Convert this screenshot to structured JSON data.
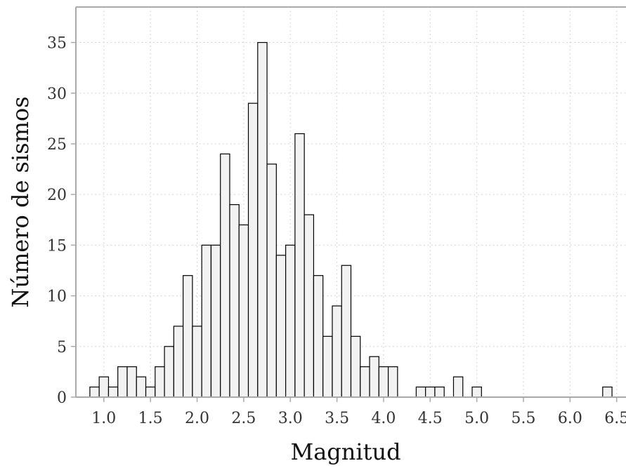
{
  "chart_data": {
    "type": "bar",
    "subtype": "histogram",
    "title": "",
    "xlabel": "Magnitud",
    "ylabel": "Número de sismos",
    "bin_width": 0.1,
    "xlim": [
      0.7,
      6.6
    ],
    "ylim": [
      0,
      38.5
    ],
    "xticks": [
      1.0,
      1.5,
      2.0,
      2.5,
      3.0,
      3.5,
      4.0,
      4.5,
      5.0,
      5.5,
      6.0,
      6.5
    ],
    "yticks": [
      0,
      5,
      10,
      15,
      20,
      25,
      30,
      35
    ],
    "grid": true,
    "bar_fill": "#f2f2f2",
    "bar_edge": "#000000",
    "bins": [
      {
        "x": 0.9,
        "count": 1
      },
      {
        "x": 1.0,
        "count": 2
      },
      {
        "x": 1.1,
        "count": 1
      },
      {
        "x": 1.2,
        "count": 3
      },
      {
        "x": 1.3,
        "count": 3
      },
      {
        "x": 1.4,
        "count": 2
      },
      {
        "x": 1.5,
        "count": 1
      },
      {
        "x": 1.6,
        "count": 3
      },
      {
        "x": 1.7,
        "count": 5
      },
      {
        "x": 1.8,
        "count": 7
      },
      {
        "x": 1.9,
        "count": 12
      },
      {
        "x": 2.0,
        "count": 7
      },
      {
        "x": 2.1,
        "count": 15
      },
      {
        "x": 2.2,
        "count": 15
      },
      {
        "x": 2.3,
        "count": 24
      },
      {
        "x": 2.4,
        "count": 19
      },
      {
        "x": 2.5,
        "count": 17
      },
      {
        "x": 2.6,
        "count": 29
      },
      {
        "x": 2.7,
        "count": 35
      },
      {
        "x": 2.8,
        "count": 23
      },
      {
        "x": 2.9,
        "count": 14
      },
      {
        "x": 3.0,
        "count": 15
      },
      {
        "x": 3.1,
        "count": 26
      },
      {
        "x": 3.2,
        "count": 18
      },
      {
        "x": 3.3,
        "count": 12
      },
      {
        "x": 3.4,
        "count": 6
      },
      {
        "x": 3.5,
        "count": 9
      },
      {
        "x": 3.6,
        "count": 13
      },
      {
        "x": 3.7,
        "count": 6
      },
      {
        "x": 3.8,
        "count": 3
      },
      {
        "x": 3.9,
        "count": 4
      },
      {
        "x": 4.0,
        "count": 3
      },
      {
        "x": 4.1,
        "count": 3
      },
      {
        "x": 4.4,
        "count": 1
      },
      {
        "x": 4.5,
        "count": 1
      },
      {
        "x": 4.6,
        "count": 1
      },
      {
        "x": 4.8,
        "count": 2
      },
      {
        "x": 5.0,
        "count": 1
      },
      {
        "x": 6.4,
        "count": 1
      }
    ]
  }
}
